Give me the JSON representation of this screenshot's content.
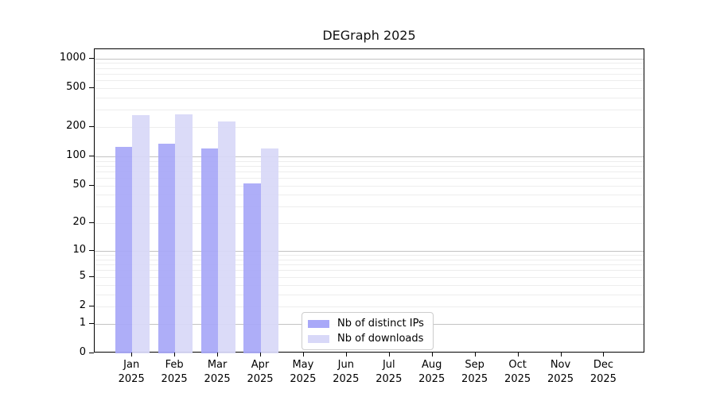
{
  "title": "DEGraph 2025",
  "chart_data": {
    "type": "bar",
    "title": "DEGraph 2025",
    "categories": [
      "Jan 2025",
      "Feb 2025",
      "Mar 2025",
      "Apr 2025",
      "May 2025",
      "Jun 2025",
      "Jul 2025",
      "Aug 2025",
      "Sep 2025",
      "Oct 2025",
      "Nov 2025",
      "Dec 2025"
    ],
    "series": [
      {
        "name": "Nb of distinct IPs",
        "color": "#a8a8f8",
        "values": [
          126,
          134,
          120,
          53,
          0,
          0,
          0,
          0,
          0,
          0,
          0,
          0
        ]
      },
      {
        "name": "Nb of downloads",
        "color": "#d8d8f8",
        "values": [
          262,
          267,
          226,
          120,
          0,
          0,
          0,
          0,
          0,
          0,
          0,
          0
        ]
      }
    ],
    "y_scale": "log1p",
    "y_tick_values": [
      0,
      1,
      2,
      5,
      10,
      20,
      50,
      100,
      200,
      500,
      1000
    ],
    "ylim": [
      0,
      1240
    ],
    "grid": true,
    "legend_position": "lower-center",
    "colors": {
      "major_grid": "#c3c3c3",
      "minor_grid": "#ededed",
      "axis": "#000000",
      "background": "#ffffff"
    }
  }
}
